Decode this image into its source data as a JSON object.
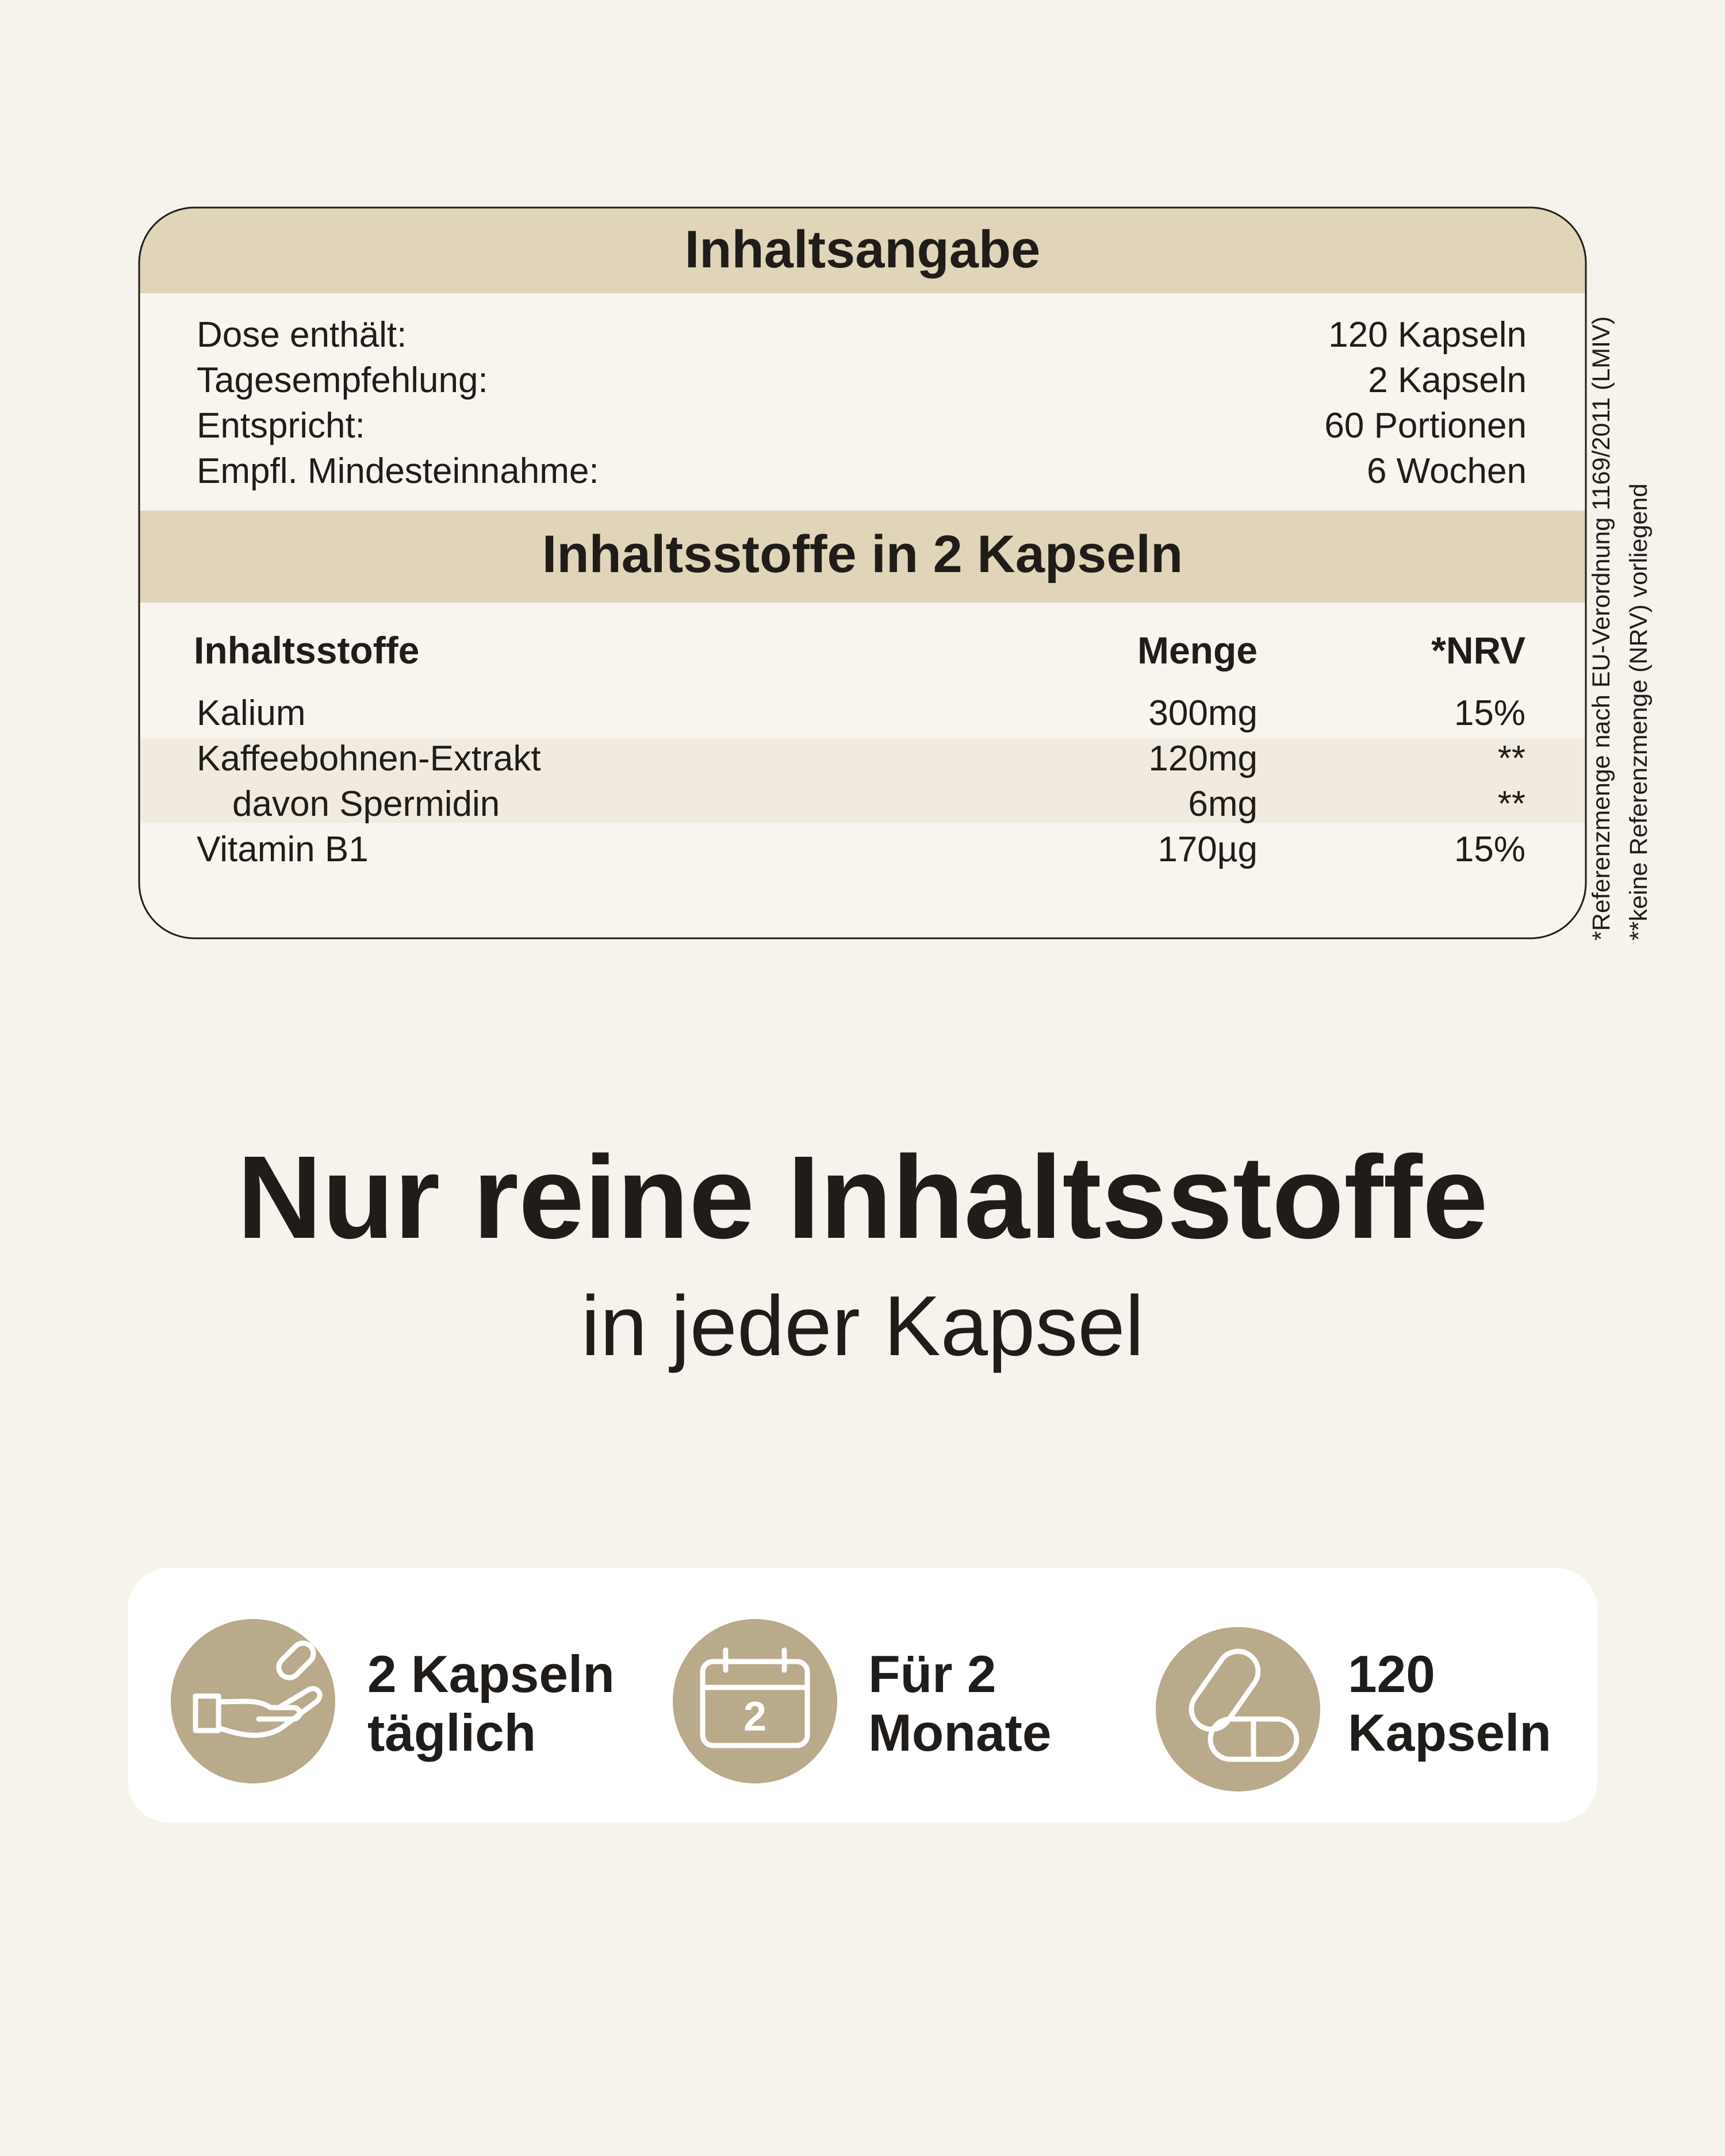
{
  "card": {
    "summary_title": "Inhaltsangabe",
    "summary": [
      [
        "Dose enthält:",
        "120 Kapseln"
      ],
      [
        "Tagesempfehlung:",
        "2 Kapseln"
      ],
      [
        "Entspricht:",
        "60 Portionen"
      ],
      [
        "Empfl. Mindesteinnahme:",
        "6 Wochen"
      ]
    ],
    "ingredients_title": "Inhaltsstoffe in 2 Kapseln",
    "columns": [
      "Inhaltsstoffe",
      "Menge",
      "*NRV"
    ],
    "rows": [
      [
        "Kalium",
        "300mg",
        "15%"
      ],
      [
        "Kaffeebohnen-Extrakt",
        "120mg",
        "**"
      ],
      [
        "davon Spermidin",
        "6mg",
        "**"
      ],
      [
        "Vitamin B1",
        "170µg",
        "15%"
      ]
    ]
  },
  "footnotes": [
    "*Referenzmenge nach EU-Verordnung 1169/2011 (LMIV)",
    "**keine Referenzmenge (NRV) vorliegend"
  ],
  "headline": "Nur reine Inhaltsstoffe",
  "subheadline": "in jeder Kapsel",
  "features": [
    {
      "lines": [
        "2 Kapseln",
        "täglich"
      ]
    },
    {
      "icon_label": "2",
      "lines": [
        "Für 2",
        "Monate"
      ]
    },
    {
      "lines": [
        "120",
        "Kapseln"
      ]
    }
  ]
}
